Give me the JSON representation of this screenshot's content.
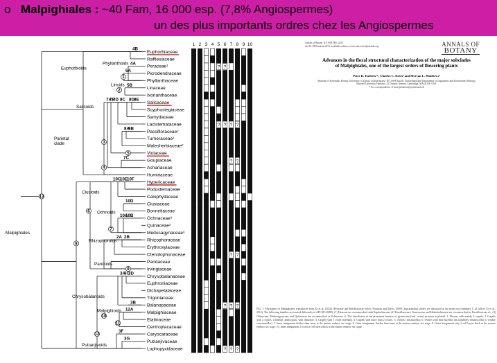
{
  "banner": {
    "bullet": "o",
    "order": "Malpighiales",
    "separator": " : ",
    "stats": "~40 Fam, 16 000 esp. (7,8% Angiospermes)",
    "line2": "un des plus importants ordres chez les Angiospermes",
    "color": "#cc1fa6"
  },
  "tree": {
    "root_label": "Malpighiales",
    "clade_labels": [
      "Euphorbioids",
      "Phyllanthoids",
      "Lincids",
      "Salicoids",
      "Parietal\nclade",
      "Clusioids",
      "Ochnoids",
      "Rhizophoroids",
      "Pandoids",
      "Chrysobalanoids",
      "Malpighioids",
      "Putranjivoids"
    ],
    "node_labels": [
      "4B",
      "4A",
      "5A",
      "5B",
      "8E",
      "8D",
      "8C",
      "8B",
      "8A",
      "7D",
      "7B",
      "7C",
      "7A",
      "10F",
      "10E",
      "10C",
      "10D",
      "10B",
      "10A",
      "2B",
      "2A",
      "3D",
      "3C",
      "3A",
      "3B",
      "12A",
      "3F",
      "3G"
    ],
    "taxa": [
      {
        "name": "Euphorbiaceae",
        "underline": true
      },
      {
        "name": "Rafflesiaceae"
      },
      {
        "name": "Peraceae¹"
      },
      {
        "name": "Picrodendraceae"
      },
      {
        "name": "Phyllanthaceae"
      },
      {
        "name": "Linaceae"
      },
      {
        "name": "Ixonanthaceae"
      },
      {
        "name": "Salicaceae",
        "underline": true
      },
      {
        "name": "Scyphostegiaceae"
      },
      {
        "name": "Samydaceae"
      },
      {
        "name": "Lacistemataceae"
      },
      {
        "name": "Passifloraceae²"
      },
      {
        "name": "Turneraceae²"
      },
      {
        "name": "Malesherbiaceae²"
      },
      {
        "name": "Violaceae",
        "underline": true
      },
      {
        "name": "Goupiaceae"
      },
      {
        "name": "Achariaceae"
      },
      {
        "name": "Humiriaceae"
      },
      {
        "name": "Hypericaceae",
        "underline": true
      },
      {
        "name": "Podostemaceae"
      },
      {
        "name": "Calophyllaceae"
      },
      {
        "name": "Clusiaceae"
      },
      {
        "name": "Bonnetiaceae"
      },
      {
        "name": "Ochnaceae³"
      },
      {
        "name": "Quinaceae³"
      },
      {
        "name": "Medusagynaceae³"
      },
      {
        "name": "Rhizophoraceae"
      },
      {
        "name": "Erythroxylaceae"
      },
      {
        "name": "Ctenolophonaceae"
      },
      {
        "name": "Pandaceae"
      },
      {
        "name": "Irvingiaceae"
      },
      {
        "name": "Chrysobalanaceae"
      },
      {
        "name": "Euphroniaceae"
      },
      {
        "name": "Dichapetalaceae"
      },
      {
        "name": "Trigoniaceae"
      },
      {
        "name": "Balanopaceae"
      },
      {
        "name": "Malpighiaceae"
      },
      {
        "name": "Elatinaceae"
      },
      {
        "name": "Centroplacaceae"
      },
      {
        "name": "Caryocaraceae"
      },
      {
        "name": "Putranjivaceae"
      },
      {
        "name": "Lophopyxidaceae"
      }
    ],
    "circled_numbers": [
      "1",
      "2",
      "3",
      "4",
      "5",
      "6",
      "7",
      "8",
      "9",
      "10",
      "11",
      "12",
      "13"
    ],
    "accent_underline": "#cc2222"
  },
  "grid": {
    "columns": [
      "1",
      "2",
      "3",
      "4",
      "5",
      "6",
      "7",
      "8",
      "9",
      "10"
    ],
    "unknown_symbol": "?",
    "rows": [
      "BBWWBBBBWB",
      "BBWBBBBBBB",
      "BBWW??WBBB",
      "BBWWBBBBBB",
      "BBWBBBBBBB",
      "BBWWBBBBWB",
      "BBBBBBBBBB",
      "BBWWBBBWWB",
      "BBWBWBBWWB",
      "BBWBBBBWWB",
      "BBWB????BB",
      "BBWBBBBBBB",
      "BBWBBBBBBB",
      "BBWBBBBBBB",
      "BBWBBBBBBB",
      "BBWBBB??BB",
      "BBWBWBWWBB",
      "BBBBBBBBBB",
      "BBWBBBBBWB",
      "BBWBBBBWWB",
      "BBBBWBWWBW",
      "BBBWWBBWWB",
      "BBBBBBBBBB",
      "BBBBBBBBBB",
      "BBBBBBBBBB",
      "BBBBBBBWWB",
      "BBBWBBBBBB",
      "BBBWBBBBWB",
      "BBBBBB??BB",
      "BBBWWBBBWB",
      "BBBBBBBBBB",
      "BBBBWBBBWB",
      "BBWBBBBBBB",
      "BBWBBBBBBB",
      "BBWBBBBBBB",
      "BBWBB???BB",
      "BBBBWBWBBB",
      "BBBBWBBBBB",
      "BBBBWBBBBB",
      "BBBBBBBBBB",
      "BBWBWBBBBB",
      "BBBWB???BB"
    ]
  },
  "paper": {
    "journal_meta": "Annals of Botany 110: 969–985, 2013\ndoi:10.1093/aob/mcs076, available online at www.aob.oxfordjournals.org",
    "logo_line1": "ANNALS OF",
    "logo_line2": "BOTANY",
    "title": "Advances in the floral structural characterization of the major subclades of Malpighiales, one of the largest orders of flowering plants",
    "authors": "Peter K. Endress¹*, Charles C. Davis² and Merran L. Matthews¹",
    "affiliation": "¹Institute of Systematic Botany, University of Zurich, Zollikerstrasse 107, 8008 Zurich, Switzerland and ²Department of Organismic and Evolutionary Biology, Harvard University Herbaria, 22 Divinity Avenue, Cambridge, MA 02138, USA\n* For correspondence. E-mail pendress@systbot.uzh.ch"
  },
  "caption": "FIG. 1. Phylogeny of Malpighiales reproduced from Xi et al. (2012) (Peraceae and Rafflesiaceae follow Wurdack and Davis, 2009). Suprafamilial clades are discussed in the main text (numbers 1–12 follow Xi et al., 2012). The following families are treated differently in APG III (2009): (1) Peraceae are circumscribed with Euphorbiaceae; (2) Passifloraceae, Turneraceae and Malesherbiaceae are circumscribed as Passifloraceae s.l.; (3) Ochnaceae, Medusagynaceae, and Quiinaceae are circumscribed as Ochnaceae s.l. The distribution of ten prominent features of gynoecium (incl. ovule) structure is plotted. 1. Flowers with mainly 3 carpels. 2. Carpels with 2 ovules, collateral, antitropous, with obturator. 3. Carpels with 1 ovule (median). 4. Carpels with more than 2 ovules. 5. Ovules crassinucellar. 6. Ovules with thin nucellus (incompletely tenuinucellar or weakly crassinucellar). 7. Inner integument thicker than outer at the mature embryo sac stage. 8. Outer integument thicker than inner at the mature embryo sac stage. 9. Outer integument only 2 cell layers thick at the mature embryo sac stage. 10. Inner integument 5 or more cell layers thick at the mature embryo sac stage"
}
